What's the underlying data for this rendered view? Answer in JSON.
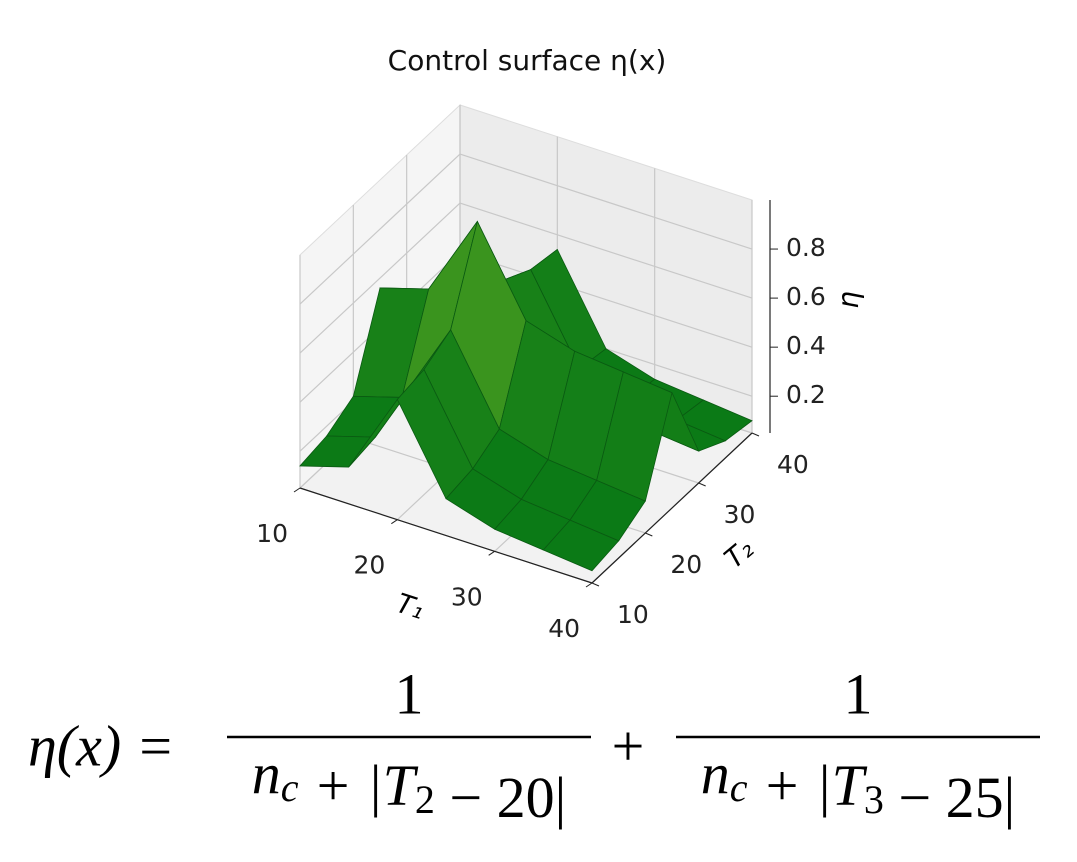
{
  "chart_data": {
    "type": "surface3d",
    "title": "Control surface η(x)",
    "xlabel": "T₁",
    "ylabel": "T₂",
    "zlabel": "η",
    "x": [
      10,
      15,
      20,
      25,
      30,
      35,
      40
    ],
    "y": [
      10,
      15,
      20,
      25,
      30,
      35,
      40
    ],
    "z": [
      [
        0.14,
        0.16,
        0.22,
        0.56,
        0.22,
        0.16,
        0.14
      ],
      [
        0.2,
        0.22,
        0.28,
        0.62,
        0.28,
        0.22,
        0.2
      ],
      [
        0.54,
        0.56,
        0.62,
        0.96,
        0.62,
        0.56,
        0.54
      ],
      [
        0.2,
        0.22,
        0.28,
        0.62,
        0.28,
        0.22,
        0.2
      ],
      [
        0.14,
        0.16,
        0.22,
        0.56,
        0.22,
        0.16,
        0.14
      ],
      [
        0.12,
        0.14,
        0.2,
        0.54,
        0.2,
        0.14,
        0.12
      ],
      [
        0.1,
        0.12,
        0.18,
        0.52,
        0.18,
        0.12,
        0.1
      ]
    ],
    "xlim": [
      10,
      40
    ],
    "ylim": [
      10,
      40
    ],
    "zlim": [
      0.05,
      1.0
    ],
    "xticks": [
      10,
      20,
      30,
      40
    ],
    "yticks": [
      10,
      20,
      30,
      40
    ],
    "zticks": [
      0.2,
      0.4,
      0.6,
      0.8
    ],
    "colors": [
      "#0b7a16",
      "#e6f23c"
    ],
    "edgecolor": "#0a5a12",
    "grid": true
  },
  "formula": {
    "lhs": "η(x) =",
    "operator": "+",
    "terms": [
      {
        "numerator": "1",
        "denominator": [
          {
            "t": "n",
            "sub": "c"
          },
          {
            "t": " + |T",
            "sub": "2"
          },
          {
            "t": " − 20|"
          }
        ]
      },
      {
        "numerator": "1",
        "denominator": [
          {
            "t": "n",
            "sub": "c"
          },
          {
            "t": " + |T",
            "sub": "3"
          },
          {
            "t": " − 25|"
          }
        ]
      }
    ]
  }
}
